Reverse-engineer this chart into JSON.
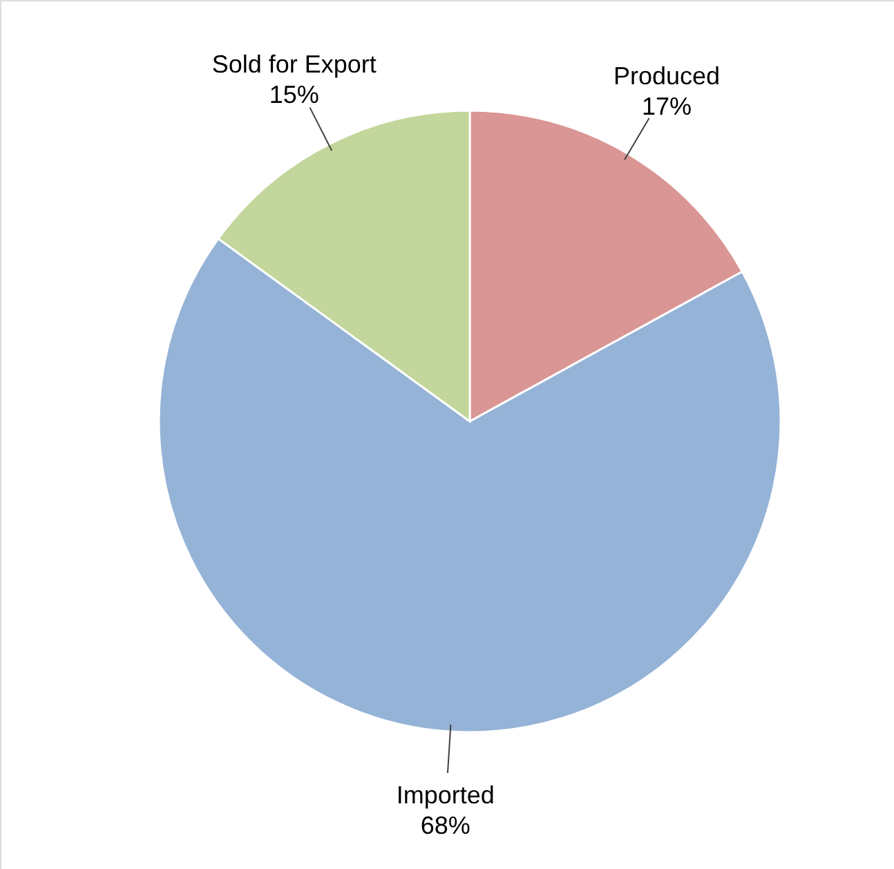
{
  "chart_data": {
    "type": "pie",
    "categories": [
      "Produced",
      "Imported",
      "Sold for Export"
    ],
    "values": [
      17,
      68,
      15
    ],
    "colors": [
      "#d99694",
      "#95b3d7",
      "#c3d69b"
    ],
    "value_labels": [
      "17%",
      "68%",
      "15%"
    ]
  }
}
